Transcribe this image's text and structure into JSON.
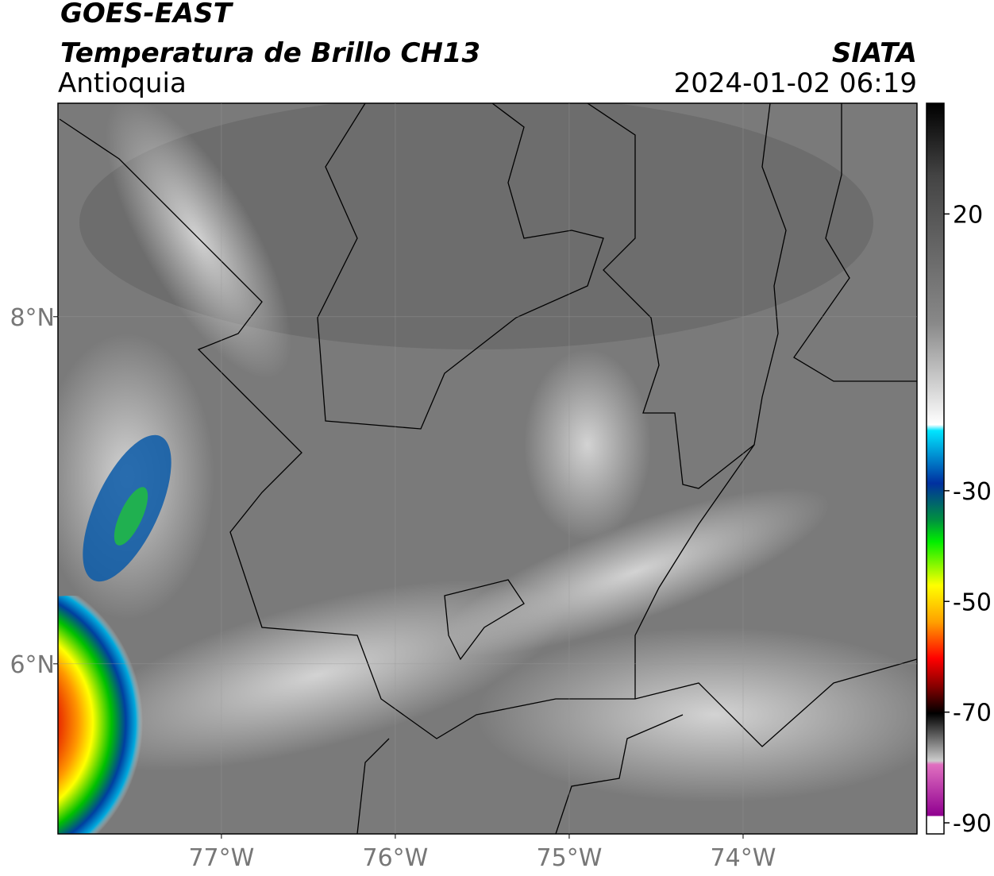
{
  "header": {
    "satellite": "GOES-EAST",
    "product": "Temperatura de Brillo CH13",
    "region": "Antioquia",
    "agency": "SIATA",
    "datetime": "2024-01-02 06:19"
  },
  "map": {
    "xlim": [
      -77.94,
      -73.0
    ],
    "ylim": [
      5.02,
      9.23
    ],
    "xticks": [
      {
        "value": -77,
        "label": "77°W"
      },
      {
        "value": -76,
        "label": "76°W"
      },
      {
        "value": -75,
        "label": "75°W"
      },
      {
        "value": -74,
        "label": "74°W"
      }
    ],
    "yticks": [
      {
        "value": 8,
        "label": "8°N"
      },
      {
        "value": 6,
        "label": "6°N"
      }
    ],
    "grid": true
  },
  "colorbar": {
    "lim": [
      -92,
      40
    ],
    "ticks": [
      20,
      -30,
      -50,
      -70,
      -90
    ]
  }
}
